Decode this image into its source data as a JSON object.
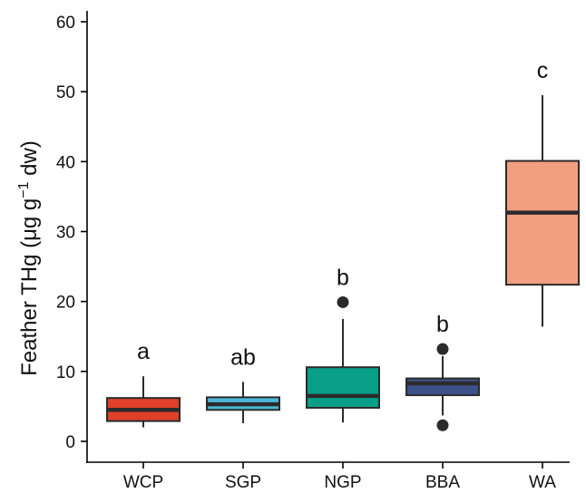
{
  "chart_data": {
    "type": "boxplot",
    "title": "",
    "xlabel": "",
    "ylabel_prefix": "Feather THg (μg g",
    "ylabel_superscript": "−1",
    "ylabel_suffix": " dw)",
    "ylim": [
      0,
      60
    ],
    "yticks": [
      0,
      10,
      20,
      30,
      40,
      50,
      60
    ],
    "ytick_labels": [
      "0",
      "10",
      "20",
      "30",
      "40",
      "50",
      "60"
    ],
    "categories": [
      "WCP",
      "SGP",
      "NGP",
      "BBA",
      "WA"
    ],
    "boxes": [
      {
        "category": "WCP",
        "whisker_low": 2.0,
        "q1": 2.9,
        "median": 4.5,
        "q3": 6.2,
        "whisker_high": 9.3,
        "outliers": [],
        "color": "#e0402a",
        "sig": "a"
      },
      {
        "category": "SGP",
        "whisker_low": 2.6,
        "q1": 4.5,
        "median": 5.3,
        "q3": 6.3,
        "whisker_high": 8.5,
        "outliers": [],
        "color": "#4bb9d8",
        "sig": "ab"
      },
      {
        "category": "NGP",
        "whisker_low": 2.7,
        "q1": 4.8,
        "median": 6.5,
        "q3": 10.6,
        "whisker_high": 17.5,
        "outliers": [
          19.9
        ],
        "color": "#079f87",
        "sig": "b"
      },
      {
        "category": "BBA",
        "whisker_low": 3.7,
        "q1": 6.6,
        "median": 8.3,
        "q3": 9.0,
        "whisker_high": 12.2,
        "outliers": [
          13.2,
          2.3
        ],
        "color": "#3c5189",
        "sig": "b"
      },
      {
        "category": "WA",
        "whisker_low": 16.4,
        "q1": 22.4,
        "median": 32.7,
        "q3": 40.1,
        "whisker_high": 49.5,
        "outliers": [],
        "color": "#f29e80",
        "sig": "c"
      }
    ]
  }
}
